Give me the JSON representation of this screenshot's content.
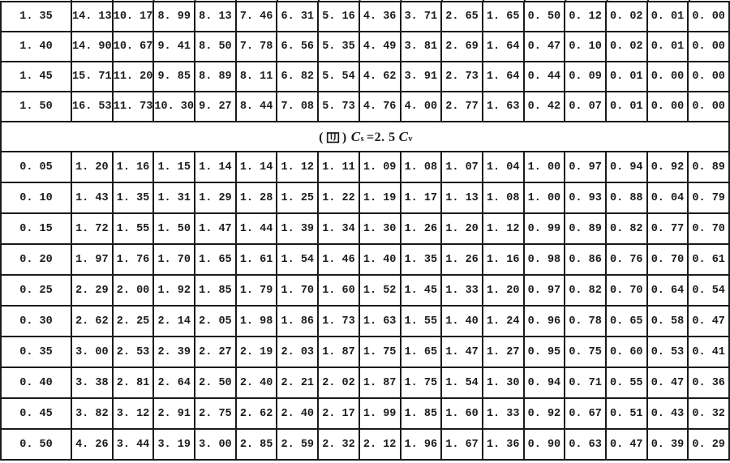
{
  "page": {
    "background": "#ffffff",
    "ink_color": "#1a1a1a",
    "description_of_content": "scanned printed numeric table page, upper table continuation, section heading, lower table"
  },
  "table": {
    "columns": 17,
    "upper_rows": [
      [
        "1. 35",
        "14. 13",
        "10. 17",
        "8. 99",
        "8. 13",
        "7. 46",
        "6. 31",
        "5. 16",
        "4. 36",
        "3. 71",
        "2. 65",
        "1. 65",
        "0. 50",
        "0. 12",
        "0. 02",
        "0. 01",
        "0. 00"
      ],
      [
        "1. 40",
        "14. 90",
        "10. 67",
        "9. 41",
        "8. 50",
        "7. 78",
        "6. 56",
        "5. 35",
        "4. 49",
        "3. 81",
        "2. 69",
        "1. 64",
        "0. 47",
        "0. 10",
        "0. 02",
        "0. 01",
        "0. 00"
      ],
      [
        "1. 45",
        "15. 71",
        "11. 20",
        "9. 85",
        "8. 89",
        "8. 11",
        "6. 82",
        "5. 54",
        "4. 62",
        "3. 91",
        "2. 73",
        "1. 64",
        "0. 44",
        "0. 09",
        "0. 01",
        "0. 00",
        "0. 00"
      ],
      [
        "1. 50",
        "16. 53",
        "11. 73",
        "10. 30",
        "9. 27",
        "8. 44",
        "7. 08",
        "5. 73",
        "4. 76",
        "4. 00",
        "2. 77",
        "1. 63",
        "0. 42",
        "0. 07",
        "0. 01",
        "0. 00",
        "0. 00"
      ]
    ],
    "section_header": {
      "full_text": "（四）Cs＝2.5Cv",
      "paren_open": "(",
      "numeral": "四",
      "paren_close": ")",
      "term1_base": "C",
      "term1_sub": "s",
      "relation": "=2. 5",
      "term2_base": "C",
      "term2_sub": "v"
    },
    "lower_rows": [
      [
        "0. 05",
        "1. 20",
        "1. 16",
        "1. 15",
        "1. 14",
        "1. 14",
        "1. 12",
        "1. 11",
        "1. 09",
        "1. 08",
        "1. 07",
        "1. 04",
        "1. 00",
        "0. 97",
        "0. 94",
        "0. 92",
        "0. 89"
      ],
      [
        "0. 10",
        "1. 43",
        "1. 35",
        "1. 31",
        "1. 29",
        "1. 28",
        "1. 25",
        "1. 22",
        "1. 19",
        "1. 17",
        "1. 13",
        "1. 08",
        "1. 00",
        "0. 93",
        "0. 88",
        "0. 04",
        "0. 79"
      ],
      [
        "0. 15",
        "1. 72",
        "1. 55",
        "1. 50",
        "1. 47",
        "1. 44",
        "1. 39",
        "1. 34",
        "1. 30",
        "1. 26",
        "1. 20",
        "1. 12",
        "0. 99",
        "0. 89",
        "0. 82",
        "0. 77",
        "0. 70"
      ],
      [
        "0. 20",
        "1. 97",
        "1. 76",
        "1. 70",
        "1. 65",
        "1. 61",
        "1. 54",
        "1. 46",
        "1. 40",
        "1. 35",
        "1. 26",
        "1. 16",
        "0. 98",
        "0. 86",
        "0. 76",
        "0. 70",
        "0. 61"
      ],
      [
        "0. 25",
        "2. 29",
        "2. 00",
        "1. 92",
        "1. 85",
        "1. 79",
        "1. 70",
        "1. 60",
        "1. 52",
        "1. 45",
        "1. 33",
        "1. 20",
        "0. 97",
        "0. 82",
        "0. 70",
        "0. 64",
        "0. 54"
      ],
      [
        "0. 30",
        "2. 62",
        "2. 25",
        "2. 14",
        "2. 05",
        "1. 98",
        "1. 86",
        "1. 73",
        "1. 63",
        "1. 55",
        "1. 40",
        "1. 24",
        "0. 96",
        "0. 78",
        "0. 65",
        "0. 58",
        "0. 47"
      ],
      [
        "0. 35",
        "3. 00",
        "2. 53",
        "2. 39",
        "2. 27",
        "2. 19",
        "2. 03",
        "1. 87",
        "1. 75",
        "1. 65",
        "1. 47",
        "1. 27",
        "0. 95",
        "0. 75",
        "0. 60",
        "0. 53",
        "0. 41"
      ],
      [
        "0. 40",
        "3. 38",
        "2. 81",
        "2. 64",
        "2. 50",
        "2. 40",
        "2. 21",
        "2. 02",
        "1. 87",
        "1. 75",
        "1. 54",
        "1. 30",
        "0. 94",
        "0. 71",
        "0. 55",
        "0. 47",
        "0. 36"
      ],
      [
        "0. 45",
        "3. 82",
        "3. 12",
        "2. 91",
        "2. 75",
        "2. 62",
        "2. 40",
        "2. 17",
        "1. 99",
        "1. 85",
        "1. 60",
        "1. 33",
        "0. 92",
        "0. 67",
        "0. 51",
        "0. 43",
        "0. 32"
      ],
      [
        "0. 50",
        "4. 26",
        "3. 44",
        "3. 19",
        "3. 00",
        "2. 85",
        "2. 59",
        "2. 32",
        "2. 12",
        "1. 96",
        "1. 67",
        "1. 36",
        "0. 90",
        "0. 63",
        "0. 47",
        "0. 39",
        "0. 29"
      ]
    ]
  }
}
